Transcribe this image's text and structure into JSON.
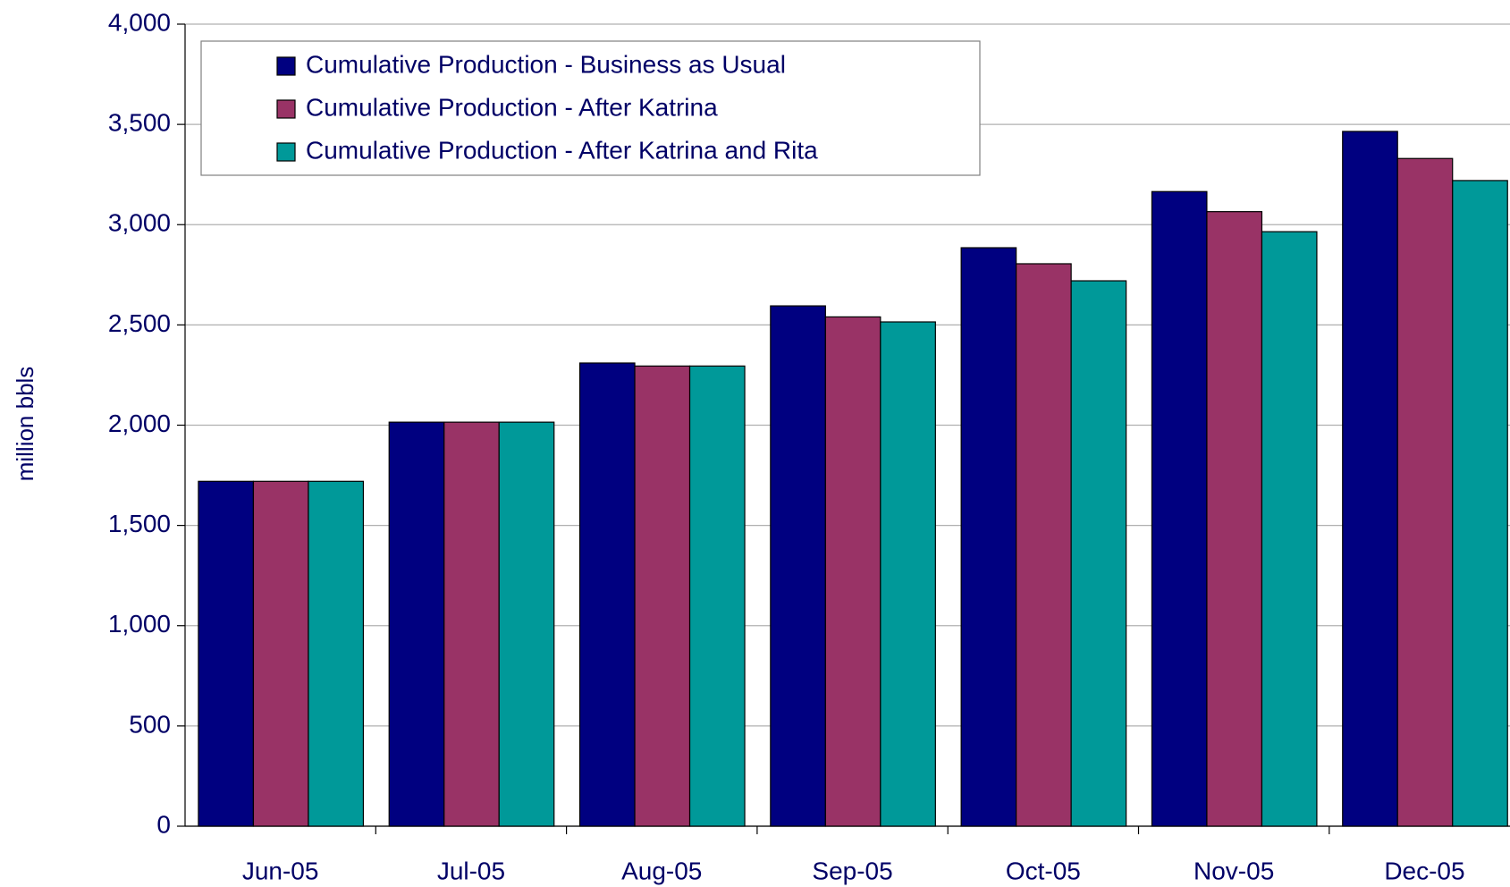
{
  "chart_data": {
    "type": "bar",
    "ylabel": "million bbls",
    "categories": [
      "Jun-05",
      "Jul-05",
      "Aug-05",
      "Sep-05",
      "Oct-05",
      "Nov-05",
      "Dec-05"
    ],
    "series": [
      {
        "name": "Cumulative Production - Business as Usual",
        "color": "#000080",
        "values": [
          1720,
          2015,
          2310,
          2595,
          2885,
          3165,
          3465
        ]
      },
      {
        "name": "Cumulative Production - After Katrina",
        "color": "#993366",
        "values": [
          1720,
          2015,
          2295,
          2540,
          2805,
          3065,
          3330
        ]
      },
      {
        "name": "Cumulative Production - After Katrina and Rita",
        "color": "#009999",
        "values": [
          1720,
          2015,
          2295,
          2515,
          2720,
          2965,
          3220
        ]
      }
    ],
    "ylim": [
      0,
      4000
    ],
    "yticks": [
      0,
      500,
      {
        "value": 1000,
        "label": "1,000"
      },
      {
        "value": 1500,
        "label": "1,500"
      },
      {
        "value": 2000,
        "label": "2,000"
      },
      {
        "value": 2500,
        "label": "2,500"
      },
      {
        "value": 3000,
        "label": "3,000"
      },
      {
        "value": 3500,
        "label": "3,500"
      },
      {
        "value": 4000,
        "label": "4,000"
      }
    ],
    "grid": true,
    "legend": "top-left"
  }
}
